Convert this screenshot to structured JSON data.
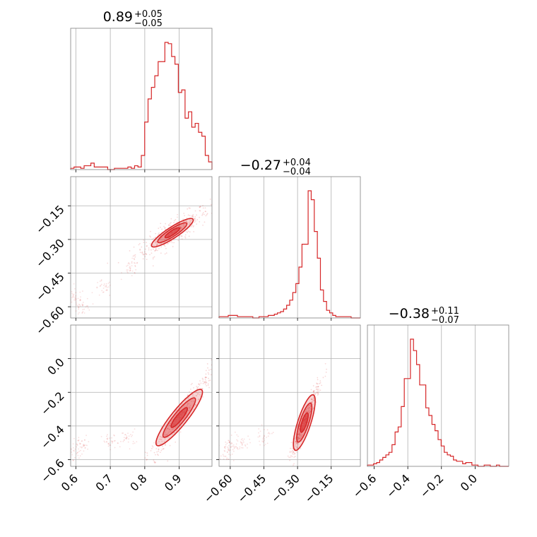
{
  "chart_data": {
    "type": "corner",
    "color": "#d62728",
    "parameters": [
      {
        "index": 0,
        "title_value": "0.89",
        "title_plus": "+0.05",
        "title_minus": "−0.05",
        "range": [
          0.585,
          0.995
        ],
        "ticks": [
          0.6,
          0.7,
          0.8,
          0.9
        ],
        "tick_labels": [
          "0.6",
          "0.7",
          "0.8",
          "0.9"
        ],
        "histogram": [
          1,
          2,
          2,
          1,
          3,
          3,
          5,
          2,
          2,
          2,
          2,
          0,
          0,
          1,
          1,
          1,
          1,
          2,
          1,
          3,
          2,
          11,
          37,
          55,
          64,
          73,
          84,
          84,
          99,
          98,
          88,
          82,
          60,
          62,
          40,
          45,
          33,
          36,
          29,
          26,
          11,
          6
        ]
      },
      {
        "index": 1,
        "title_value": "−0.27",
        "title_plus": "+0.04",
        "title_minus": "−0.04",
        "range": [
          -0.65,
          -0.02
        ],
        "ticks": [
          -0.6,
          -0.45,
          -0.3,
          -0.15
        ],
        "tick_labels": [
          "−0.60",
          "−0.45",
          "−0.30",
          "−0.15"
        ],
        "histogram": [
          1,
          1,
          1,
          2,
          2,
          2,
          1,
          1,
          1,
          1,
          1,
          0,
          0,
          1,
          1,
          1,
          2,
          2,
          3,
          4,
          5,
          7,
          10,
          14,
          20,
          27,
          40,
          58,
          58,
          100,
          93,
          68,
          47,
          22,
          13,
          6,
          4,
          2,
          1,
          1,
          1,
          1,
          1,
          0,
          0,
          0
        ]
      },
      {
        "index": 2,
        "title_value": "−0.38",
        "title_plus": "+0.11",
        "title_minus": "−0.07",
        "range": [
          -0.64,
          0.2
        ],
        "ticks": [
          -0.6,
          -0.4,
          -0.2,
          0.0
        ],
        "tick_labels": [
          "−0.6",
          "−0.4",
          "−0.2",
          "0.0"
        ],
        "tick_labels_y": [
          "−0.6",
          "−0.4",
          "−0.2",
          "0.0"
        ],
        "histogram": [
          1,
          1,
          2,
          3,
          5,
          7,
          9,
          11,
          17,
          27,
          31,
          47,
          69,
          69,
          100,
          91,
          80,
          64,
          64,
          46,
          40,
          33,
          28,
          21,
          16,
          11,
          9,
          8,
          5,
          4,
          4,
          2,
          3,
          3,
          1,
          1,
          0,
          0,
          1,
          1,
          0,
          0,
          1,
          0,
          0,
          0
        ]
      }
    ],
    "density_panels": [
      {
        "x": 0,
        "y": 1,
        "points": [
          [
            0.88,
            -0.27
          ],
          [
            0.93,
            -0.22
          ],
          [
            0.84,
            -0.31
          ],
          [
            0.96,
            -0.19
          ]
        ],
        "slope": 0.9,
        "spread": 0.018,
        "tail": [
          [
            0.6,
            -0.56
          ],
          [
            0.68,
            -0.52
          ],
          [
            0.76,
            -0.43
          ],
          [
            0.62,
            -0.6
          ]
        ]
      },
      {
        "x": 0,
        "y": 2,
        "points": [
          [
            0.9,
            -0.35
          ],
          [
            0.95,
            -0.22
          ],
          [
            0.85,
            -0.43
          ],
          [
            0.98,
            -0.1
          ]
        ],
        "slope": 2.9,
        "spread": 0.025,
        "tail": [
          [
            0.62,
            -0.51
          ],
          [
            0.7,
            -0.5
          ],
          [
            0.75,
            -0.47
          ],
          [
            0.6,
            -0.55
          ]
        ]
      },
      {
        "x": 1,
        "y": 2,
        "points": [
          [
            -0.27,
            -0.38
          ],
          [
            -0.24,
            -0.27
          ],
          [
            -0.3,
            -0.45
          ],
          [
            -0.22,
            -0.12
          ]
        ],
        "slope": 3.3,
        "spread": 0.02,
        "tail": [
          [
            -0.6,
            -0.52
          ],
          [
            -0.55,
            -0.5
          ],
          [
            -0.45,
            -0.46
          ],
          [
            -0.62,
            -0.56
          ]
        ]
      }
    ]
  }
}
